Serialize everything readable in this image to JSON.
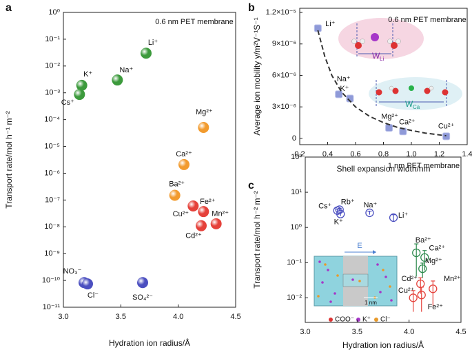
{
  "chart_data": [
    {
      "type": "scatter",
      "panel": "a",
      "annotation": "0.6 nm PET membrane",
      "xlabel": "Hydration ion radius/Å",
      "ylabel": "Transport rate/mol h⁻¹ m⁻²",
      "xlim": [
        3,
        4.5
      ],
      "xticks": [
        {
          "value": 3,
          "label": "3.0"
        },
        3.5,
        {
          "value": 4,
          "label": "4.0"
        },
        4.5
      ],
      "ylim": [
        1e-11,
        1
      ],
      "ylog": true,
      "yticks": [
        {
          "value": 1,
          "label": "10⁰"
        },
        {
          "value": 0.1,
          "label": "10⁻¹"
        },
        {
          "value": 0.01,
          "label": "10⁻²"
        },
        {
          "value": 0.001,
          "label": "10⁻³"
        },
        {
          "value": 0.0001,
          "label": "10⁻⁴"
        },
        {
          "value": 1e-05,
          "label": "10⁻⁵"
        },
        {
          "value": 1e-06,
          "label": "10⁻⁶"
        },
        {
          "value": 1e-07,
          "label": "10⁻⁷"
        },
        {
          "value": 1e-08,
          "label": "10⁻⁸"
        },
        {
          "value": 1e-09,
          "label": "10⁻⁹"
        },
        {
          "value": 1e-10,
          "label": "10⁻¹⁰"
        },
        {
          "value": 1e-11,
          "label": "10⁻¹¹"
        }
      ],
      "marker": "sphere",
      "series": [
        {
          "color": "#3c9a3c",
          "labels": [
            "K⁺",
            "Cs⁺",
            "Na⁺",
            "Li⁺"
          ],
          "x": [
            3.16,
            3.14,
            3.47,
            3.72
          ],
          "values": [
            0.0019,
            0.00087,
            0.003,
            0.03
          ]
        },
        {
          "color": "#f29b2e",
          "labels": [
            "Mg²⁺",
            "Ca²⁺",
            "Ba²⁺"
          ],
          "x": [
            4.22,
            4.05,
            3.97
          ],
          "values": [
            5.1e-05,
            2.1e-06,
            1.5e-07
          ]
        },
        {
          "color": "#e5413a",
          "labels": [
            "Cu²⁺",
            "Fe²⁺",
            "Mn²⁺",
            "Cd²⁺"
          ],
          "x": [
            4.13,
            4.22,
            4.33,
            4.2
          ],
          "values": [
            6e-08,
            3.7e-08,
            1.3e-08,
            1.1e-08
          ]
        },
        {
          "color": "#4b4fc0",
          "labels": [
            "NO₃⁻",
            "Cl⁻",
            "SO₄²⁻"
          ],
          "x": [
            3.18,
            3.21,
            3.69
          ],
          "values": [
            8.3e-11,
            7.4e-11,
            8.3e-11
          ]
        }
      ]
    },
    {
      "type": "scatter",
      "panel": "b",
      "annotation": "0.6 nm PET membrane",
      "xlabel": "Shell expansion width/nm",
      "ylabel": "Average ion mobility y/m²V⁻¹S⁻¹",
      "xlim": [
        0.2,
        1.4
      ],
      "xticks": [
        0.2,
        0.4,
        0.6,
        0.8,
        {
          "value": 1,
          "label": "1.0"
        },
        1.2,
        1.4
      ],
      "ylim": [
        -6e-07,
        1.24e-05
      ],
      "yticks": [
        0,
        {
          "value": 3e-06,
          "label": "3×10⁻⁶"
        },
        {
          "value": 6e-06,
          "label": "6×10⁻⁶"
        },
        {
          "value": 9e-06,
          "label": "9×10⁻⁶"
        },
        {
          "value": 1.2e-05,
          "label": "1.2×10⁻⁵"
        }
      ],
      "marker": "square",
      "series": [
        {
          "color": "#8f9ad8",
          "labels": [
            "Li⁺",
            "Na⁺",
            "K⁺",
            "Mg²⁺",
            "Ca²⁺",
            "Cu²⁺"
          ],
          "x": [
            0.33,
            0.48,
            0.56,
            0.84,
            0.94,
            1.25
          ],
          "values": [
            1.05e-05,
            4.2e-06,
            3.8e-06,
            1e-06,
            6.6e-07,
            2e-07
          ]
        },
        {
          "color": "#333333",
          "style": "dashed",
          "x": [
            0.33,
            0.38,
            0.43,
            0.5,
            0.6,
            0.7,
            0.8,
            0.9,
            1.0,
            1.1,
            1.25
          ],
          "values": [
            1.03e-05,
            7.8e-06,
            6e-06,
            4.4e-06,
            3e-06,
            2.1e-06,
            1.5e-06,
            1.05e-06,
            7.5e-07,
            5e-07,
            2.5e-07
          ]
        }
      ],
      "inset_labels": [
        {
          "letter": "W",
          "subscript": "Li"
        },
        {
          "letter": "W",
          "subscript": "Ca"
        }
      ]
    },
    {
      "type": "scatter",
      "panel": "c",
      "annotation": "1 nm PET membrane",
      "xlabel": "Hydration ion radius/Å",
      "ylabel": "Transport rate/mol h⁻² m⁻²",
      "xlim": [
        3,
        4.5
      ],
      "xticks": [
        {
          "value": 3,
          "label": "3.0"
        },
        3.5,
        {
          "value": 4,
          "label": "4.0"
        },
        4.5
      ],
      "ylim": [
        0.002,
        100
      ],
      "ylog": true,
      "yticks": [
        {
          "value": 100,
          "label": "10²"
        },
        {
          "value": 10,
          "label": "10¹"
        },
        {
          "value": 1,
          "label": "10⁰"
        },
        {
          "value": 0.1,
          "label": "10⁻¹"
        },
        {
          "value": 0.01,
          "label": "10⁻²"
        }
      ],
      "marker": "open-circle",
      "series": [
        {
          "color": "#4b4fc0",
          "labels": [
            "Cs⁺",
            "Rb⁺",
            "K⁺",
            "Na⁺",
            "Li⁺"
          ],
          "x": [
            3.31,
            3.33,
            3.34,
            3.62,
            3.85
          ],
          "values": [
            3,
            3.2,
            2.4,
            2.6,
            1.9
          ],
          "yerr": [
            0.3,
            0.3,
            0.3,
            0.3,
            0.4
          ]
        },
        {
          "color": "#2e8b4e",
          "labels": [
            "Ba²⁺",
            "Ca²⁺",
            "Mg²⁺"
          ],
          "x": [
            4.07,
            4.15,
            4.13
          ],
          "values": [
            0.19,
            0.14,
            0.067
          ],
          "yerr": [
            0.15,
            0.08,
            0.03
          ]
        },
        {
          "color": "#e5413a",
          "labels": [
            "Cd²⁺",
            "Cu²⁺",
            "Mn²⁺",
            "Fe²⁺"
          ],
          "x": [
            4.11,
            4.04,
            4.23,
            4.12
          ],
          "values": [
            0.025,
            0.01,
            0.018,
            0.012
          ],
          "yerr": [
            0.012,
            0.006,
            0.012,
            0.008
          ]
        }
      ],
      "inset": {
        "field": "E",
        "scale": "1 nm",
        "legend": [
          "COO⁻",
          "K⁺",
          "Cl⁻"
        ]
      }
    }
  ]
}
